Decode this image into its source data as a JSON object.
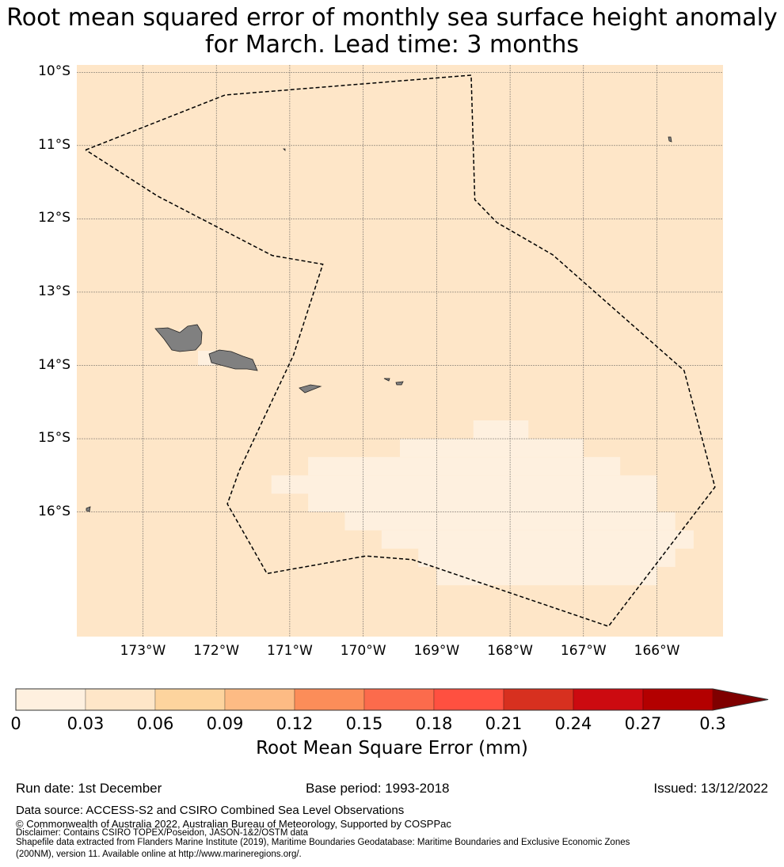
{
  "title_line1": "Root mean squared error of monthly sea surface height anomaly",
  "title_line2": "for March. Lead time: 3 months",
  "chart_data": {
    "type": "heatmap",
    "lon_range": [
      -173.9,
      -165.1
    ],
    "lat_range": [
      -17.7,
      -9.9
    ],
    "lat_ticks": [
      "10°S",
      "11°S",
      "12°S",
      "13°S",
      "14°S",
      "15°S",
      "16°S"
    ],
    "lat_values": [
      -10,
      -11,
      -12,
      -13,
      -14,
      -15,
      -16
    ],
    "lon_ticks": [
      "173°W",
      "172°W",
      "171°W",
      "170°W",
      "169°W",
      "168°W",
      "167°W",
      "166°W"
    ],
    "lon_values": [
      -173,
      -172,
      -171,
      -170,
      -169,
      -168,
      -167,
      -166
    ],
    "background_value_range": [
      0.03,
      0.06
    ],
    "low_error_range": [
      0,
      0.03
    ],
    "low_error_boxes": [
      [
        -168.5,
        -167.75,
        -14.75,
        -15.0
      ],
      [
        -169.5,
        -167.0,
        -15.0,
        -15.25
      ],
      [
        -170.75,
        -166.5,
        -15.25,
        -15.5
      ],
      [
        -171.25,
        -166.0,
        -15.5,
        -15.75
      ],
      [
        -170.75,
        -166.0,
        -15.75,
        -16.0
      ],
      [
        -170.25,
        -165.75,
        -16.0,
        -16.25
      ],
      [
        -169.75,
        -165.5,
        -16.25,
        -16.5
      ],
      [
        -169.25,
        -165.75,
        -16.5,
        -16.75
      ],
      [
        -169.0,
        -166.0,
        -16.75,
        -17.0
      ],
      [
        -172.5,
        -172.25,
        -13.5,
        -13.75
      ],
      [
        -172.25,
        -172.0,
        -13.8,
        -14.0
      ]
    ],
    "eez_boundary": [
      [
        -173.78,
        -11.06
      ],
      [
        -171.88,
        -10.31
      ],
      [
        -168.53,
        -10.04
      ],
      [
        -168.48,
        -11.74
      ],
      [
        -168.18,
        -12.05
      ],
      [
        -167.42,
        -12.49
      ],
      [
        -165.63,
        -14.07
      ],
      [
        -165.21,
        -15.66
      ],
      [
        -166.66,
        -17.56
      ],
      [
        -169.33,
        -16.65
      ],
      [
        -169.96,
        -16.6
      ],
      [
        -171.31,
        -16.84
      ],
      [
        -171.85,
        -15.89
      ],
      [
        -171.69,
        -15.44
      ],
      [
        -170.95,
        -13.86
      ],
      [
        -170.55,
        -12.62
      ],
      [
        -171.24,
        -12.5
      ],
      [
        -172.8,
        -11.69
      ],
      [
        -173.78,
        -11.06
      ]
    ],
    "colorbar": {
      "ticks": [
        "0",
        "0.03",
        "0.06",
        "0.09",
        "0.12",
        "0.15",
        "0.18",
        "0.21",
        "0.24",
        "0.27",
        "0.3"
      ],
      "colors": [
        "#fef0df",
        "#fee6c8",
        "#fdd49e",
        "#fdbb84",
        "#fc8d59",
        "#fc6b4c",
        "#ff5040",
        "#d7301f",
        "#cc0a10",
        "#b30000"
      ],
      "extend_color": "#7f0000",
      "label": "Root Mean Square Error (mm)"
    },
    "colors": {
      "background": "#fee6c8",
      "low": "#fef0df",
      "land": "#808080"
    }
  },
  "footer": {
    "run_date": "Run date: 1st December",
    "base_period": "Base period: 1993-2018",
    "issued": "Issued: 13/12/2022",
    "data_source": "Data source: ACCESS-S2 and CSIRO Combined Sea Level Observations",
    "copyright": "© Commonwealth of Australia 2022, Australian Bureau of Meteorology, Supported by COSPPac",
    "disclaimer": "Disclaimer: Contains CSIRO TOPEX/Poseidon, JASON-1&2/OSTM data",
    "shapefile1": "Shapefile data extracted from Flanders Marine Institute (2019), Maritime Boundaries Geodatabase: Maritime Boundaries and Exclusive Economic Zones",
    "shapefile2": "(200NM), version 11. Available online at http://www.marineregions.org/."
  }
}
